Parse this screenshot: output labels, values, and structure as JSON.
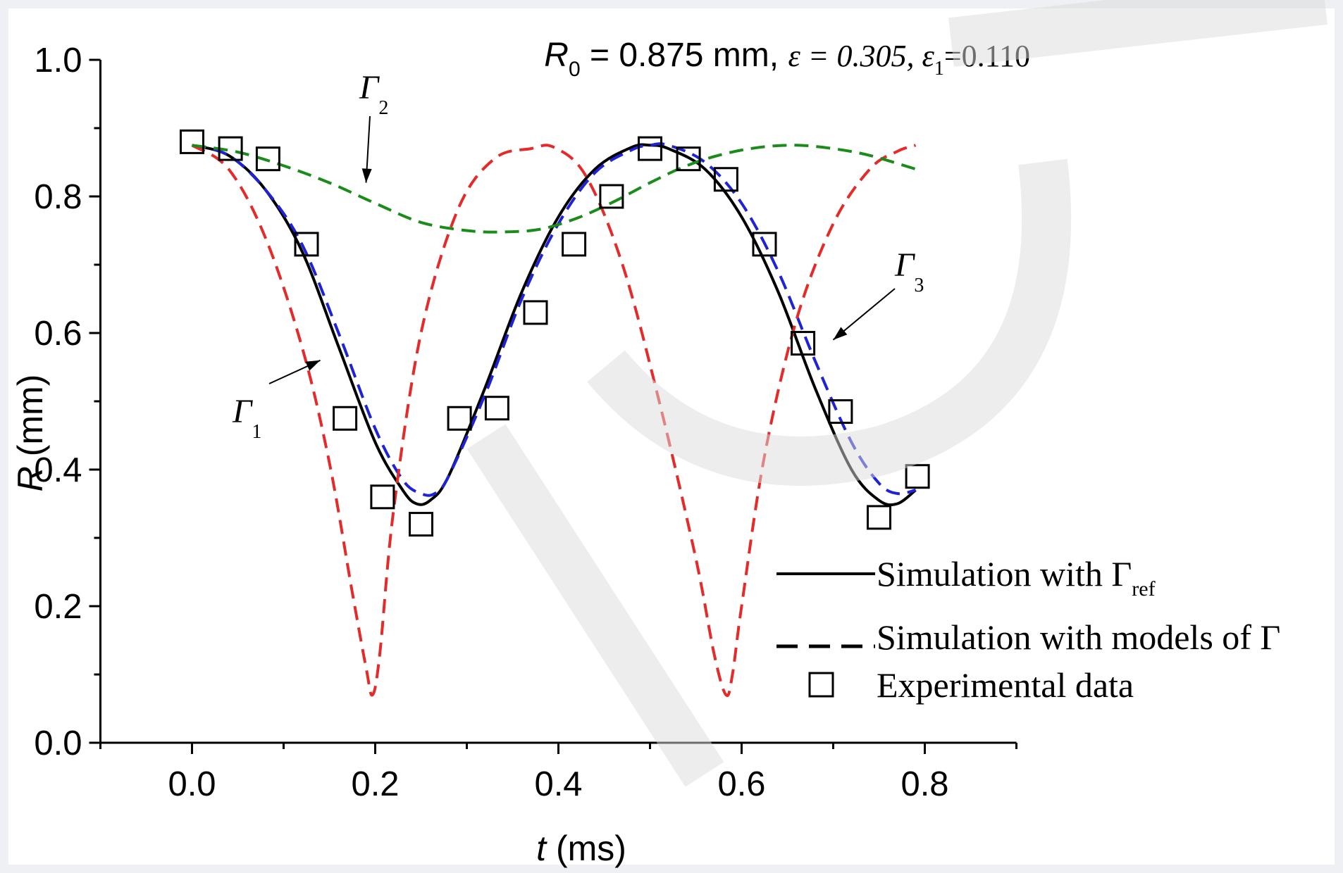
{
  "chart_data": {
    "type": "line",
    "title_parts": {
      "r0_symbol": "R",
      "r0_sub": "0",
      "r0_value": " = 0.875 mm, ",
      "eps_text": "ε = 0.305, ε",
      "eps1_sub": "1",
      "eps1_value": "=0.110"
    },
    "xlabel": {
      "symbol": "t",
      "unit": "(ms)"
    },
    "ylabel": {
      "symbol": "R",
      "unit": "(mm)"
    },
    "xlim": [
      -0.1,
      0.9
    ],
    "ylim": [
      0.0,
      1.0
    ],
    "x_ticks": [
      "0.0",
      "0.2",
      "0.4",
      "0.6",
      "0.8"
    ],
    "y_ticks": [
      "0.0",
      "0.2",
      "0.4",
      "0.6",
      "0.8",
      "1.0"
    ],
    "legend_position": "bottom-right",
    "legend": [
      {
        "symbol": "solid-line",
        "text": "Simulation with Γ",
        "sub": "ref"
      },
      {
        "symbol": "dashed-line",
        "text": "Simulation with models of Γ",
        "sub": ""
      },
      {
        "symbol": "open-square",
        "text": "Experimental data",
        "sub": ""
      }
    ],
    "annotations": [
      {
        "id": "gamma1",
        "text": "Γ",
        "sub": "1",
        "points_to": [
          0.14,
          0.56
        ]
      },
      {
        "id": "gamma2",
        "text": "Γ",
        "sub": "2",
        "points_to": [
          0.19,
          0.82
        ]
      },
      {
        "id": "gamma3",
        "text": "Γ",
        "sub": "3",
        "points_to": [
          0.7,
          0.59
        ]
      }
    ],
    "series": [
      {
        "style": "solid",
        "color": "#000000",
        "x": [
          0.0,
          0.04,
          0.08,
          0.12,
          0.16,
          0.2,
          0.23,
          0.245,
          0.26,
          0.28,
          0.32,
          0.36,
          0.4,
          0.44,
          0.48,
          0.5,
          0.52,
          0.56,
          0.6,
          0.64,
          0.68,
          0.72,
          0.75,
          0.77,
          0.79
        ],
        "y": [
          0.875,
          0.86,
          0.81,
          0.72,
          0.58,
          0.44,
          0.37,
          0.35,
          0.355,
          0.39,
          0.52,
          0.66,
          0.77,
          0.84,
          0.872,
          0.875,
          0.87,
          0.84,
          0.77,
          0.66,
          0.52,
          0.4,
          0.355,
          0.35,
          0.37
        ]
      },
      {
        "style": "dashed",
        "color": "#1f23d8",
        "x": [
          0.0,
          0.04,
          0.08,
          0.12,
          0.16,
          0.2,
          0.23,
          0.25,
          0.265,
          0.28,
          0.32,
          0.36,
          0.4,
          0.44,
          0.48,
          0.5,
          0.52,
          0.56,
          0.6,
          0.64,
          0.68,
          0.72,
          0.75,
          0.77,
          0.79
        ],
        "y": [
          0.875,
          0.86,
          0.81,
          0.73,
          0.6,
          0.46,
          0.385,
          0.365,
          0.365,
          0.39,
          0.51,
          0.65,
          0.76,
          0.835,
          0.868,
          0.875,
          0.875,
          0.85,
          0.79,
          0.69,
          0.56,
          0.44,
          0.38,
          0.365,
          0.37
        ]
      },
      {
        "style": "dashed",
        "color": "#e52a2a",
        "x": [
          0.0,
          0.04,
          0.08,
          0.12,
          0.15,
          0.175,
          0.19,
          0.197,
          0.205,
          0.22,
          0.25,
          0.29,
          0.33,
          0.37,
          0.395,
          0.43,
          0.47,
          0.51,
          0.55,
          0.57,
          0.583,
          0.59,
          0.6,
          0.625,
          0.66,
          0.7,
          0.74,
          0.77,
          0.79
        ],
        "y": [
          0.875,
          0.84,
          0.74,
          0.58,
          0.41,
          0.22,
          0.11,
          0.07,
          0.13,
          0.34,
          0.6,
          0.78,
          0.855,
          0.87,
          0.872,
          0.83,
          0.7,
          0.5,
          0.27,
          0.13,
          0.07,
          0.1,
          0.2,
          0.42,
          0.62,
          0.76,
          0.84,
          0.866,
          0.875
        ]
      },
      {
        "style": "dashed",
        "color": "#1a8c1a",
        "x": [
          0.0,
          0.05,
          0.1,
          0.15,
          0.2,
          0.25,
          0.3,
          0.34,
          0.38,
          0.42,
          0.46,
          0.5,
          0.54,
          0.58,
          0.62,
          0.66,
          0.7,
          0.74,
          0.79
        ],
        "y": [
          0.875,
          0.865,
          0.845,
          0.82,
          0.79,
          0.762,
          0.75,
          0.748,
          0.752,
          0.768,
          0.792,
          0.82,
          0.845,
          0.862,
          0.872,
          0.875,
          0.87,
          0.86,
          0.84
        ]
      }
    ],
    "experimental": {
      "x": [
        0.0,
        0.042,
        0.083,
        0.125,
        0.167,
        0.208,
        0.25,
        0.292,
        0.333,
        0.375,
        0.417,
        0.458,
        0.5,
        0.542,
        0.583,
        0.625,
        0.667,
        0.708,
        0.75,
        0.792
      ],
      "y": [
        0.88,
        0.87,
        0.855,
        0.73,
        0.475,
        0.36,
        0.32,
        0.475,
        0.49,
        0.63,
        0.73,
        0.8,
        0.87,
        0.855,
        0.825,
        0.73,
        0.585,
        0.485,
        0.33,
        0.39
      ]
    }
  }
}
